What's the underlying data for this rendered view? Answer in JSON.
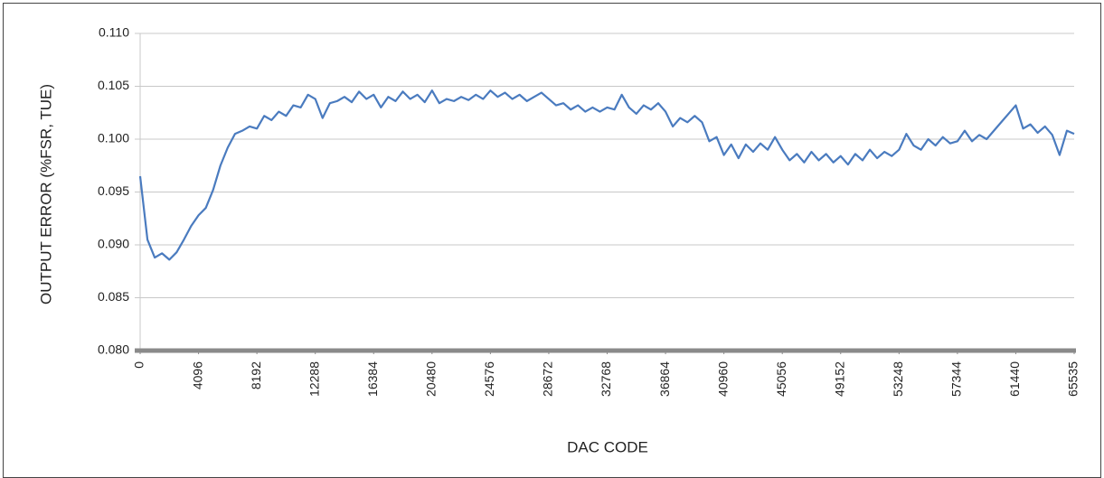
{
  "chart_data": {
    "type": "line",
    "xlabel": "DAC CODE",
    "ylabel": "OUTPUT ERROR (%FSR, TUE)",
    "xlim": [
      0,
      65535
    ],
    "ylim": [
      0.08,
      0.11
    ],
    "xticks": [
      0,
      4096,
      8192,
      12288,
      16384,
      20480,
      24576,
      28672,
      32768,
      36864,
      40960,
      45056,
      49152,
      53248,
      57344,
      61440,
      65535
    ],
    "yticks": [
      {
        "value": 0.08,
        "label": "0.080"
      },
      0.085,
      {
        "value": 0.09,
        "label": "0.090"
      },
      0.095,
      {
        "value": 0.1,
        "label": "0.100"
      },
      0.105,
      {
        "value": 0.11,
        "label": "0.110"
      }
    ],
    "grid": true,
    "series": [
      {
        "color": "#4a7bbf",
        "x": [
          0,
          512,
          1024,
          1536,
          2048,
          2560,
          3072,
          3584,
          4096,
          4608,
          5120,
          5632,
          6144,
          6656,
          7168,
          7680,
          8192,
          8704,
          9216,
          9728,
          10240,
          10752,
          11264,
          11776,
          12288,
          12800,
          13312,
          13824,
          14336,
          14848,
          15360,
          15872,
          16384,
          16896,
          17408,
          17920,
          18432,
          18944,
          19456,
          19968,
          20480,
          20992,
          21504,
          22016,
          22528,
          23040,
          23552,
          24064,
          24576,
          25088,
          25600,
          26112,
          26624,
          27136,
          27648,
          28160,
          28672,
          29184,
          29696,
          30208,
          30720,
          31232,
          31744,
          32256,
          32768,
          33280,
          33792,
          34304,
          34816,
          35328,
          35840,
          36352,
          36864,
          37376,
          37888,
          38400,
          38912,
          39424,
          39936,
          40448,
          40960,
          41472,
          41984,
          42496,
          43008,
          43520,
          44032,
          44544,
          45056,
          45568,
          46080,
          46592,
          47104,
          47616,
          48128,
          48640,
          49152,
          49664,
          50176,
          50688,
          51200,
          51712,
          52224,
          52736,
          53248,
          53760,
          54272,
          54784,
          55296,
          55808,
          56320,
          56832,
          57344,
          57856,
          58368,
          58880,
          59392,
          59904,
          60416,
          60928,
          61440,
          61952,
          62464,
          62976,
          63488,
          64000,
          64512,
          65024,
          65535
        ],
        "values": [
          0.0965,
          0.0905,
          0.0888,
          0.0892,
          0.0886,
          0.0893,
          0.0905,
          0.0918,
          0.0928,
          0.0935,
          0.0952,
          0.0975,
          0.0992,
          0.1005,
          0.1008,
          0.1012,
          0.101,
          0.1022,
          0.1018,
          0.1026,
          0.1022,
          0.1032,
          0.103,
          0.1042,
          0.1038,
          0.102,
          0.1034,
          0.1036,
          0.104,
          0.1035,
          0.1045,
          0.1038,
          0.1042,
          0.103,
          0.104,
          0.1036,
          0.1045,
          0.1038,
          0.1042,
          0.1035,
          0.1046,
          0.1034,
          0.1038,
          0.1036,
          0.104,
          0.1037,
          0.1042,
          0.1038,
          0.1046,
          0.104,
          0.1044,
          0.1038,
          0.1042,
          0.1036,
          0.104,
          0.1044,
          0.1038,
          0.1032,
          0.1034,
          0.1028,
          0.1032,
          0.1026,
          0.103,
          0.1026,
          0.103,
          0.1028,
          0.1042,
          0.103,
          0.1024,
          0.1032,
          0.1028,
          0.1034,
          0.1026,
          0.1012,
          0.102,
          0.1016,
          0.1022,
          0.1016,
          0.0998,
          0.1002,
          0.0985,
          0.0995,
          0.0982,
          0.0995,
          0.0988,
          0.0996,
          0.099,
          0.1002,
          0.099,
          0.098,
          0.0986,
          0.0978,
          0.0988,
          0.098,
          0.0986,
          0.0978,
          0.0984,
          0.0976,
          0.0986,
          0.098,
          0.099,
          0.0982,
          0.0988,
          0.0984,
          0.099,
          0.1005,
          0.0994,
          0.099,
          0.1,
          0.0994,
          0.1002,
          0.0996,
          0.0998,
          0.1008,
          0.0998,
          0.1004,
          0.1,
          0.1008,
          0.1016,
          0.1024,
          0.1032,
          0.101,
          0.1014,
          0.1006,
          0.1012,
          0.1004,
          0.0985,
          0.1008,
          0.1005
        ]
      }
    ]
  }
}
